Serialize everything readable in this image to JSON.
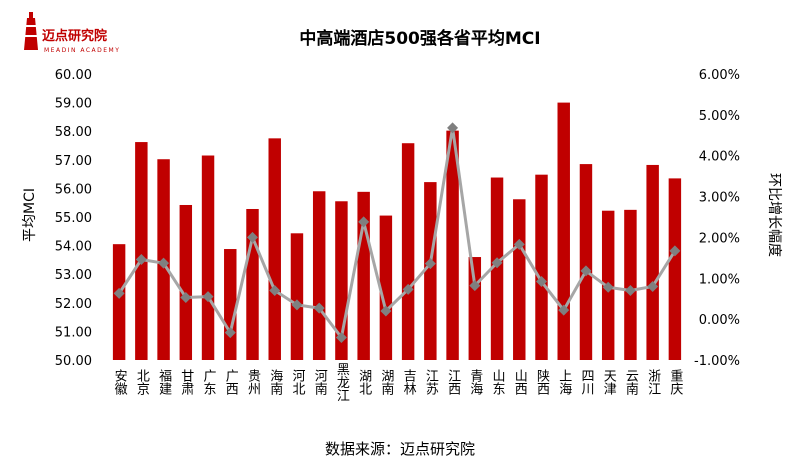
{
  "logo": {
    "text": "迈点研究院",
    "tagline": "MEADIN ACADEMY"
  },
  "footer": {
    "source": "数据来源：迈点研究院"
  },
  "colors": {
    "bar": "#C00000",
    "line": "#A6A6A6",
    "marker": "#7F7F7F",
    "title": "#000000"
  },
  "chart_data": {
    "type": "bar",
    "title": "中高端酒店500强各省平均MCI",
    "ylabel": "平均MCI",
    "y2label": "环比增长幅度",
    "ylim": [
      50,
      60
    ],
    "yticks": [
      "50.00",
      "51.00",
      "52.00",
      "53.00",
      "54.00",
      "55.00",
      "56.00",
      "57.00",
      "58.00",
      "59.00",
      "60.00"
    ],
    "y2lim": [
      -0.01,
      0.06
    ],
    "y2ticks": [
      "-1.00%",
      "0.00%",
      "1.00%",
      "2.00%",
      "3.00%",
      "4.00%",
      "5.00%",
      "6.00%"
    ],
    "grid": false,
    "legend": "none",
    "categories": [
      "安徽",
      "北京",
      "福建",
      "甘肃",
      "广东",
      "广西",
      "贵州",
      "海南",
      "河北",
      "河南",
      "黑龙江",
      "湖北",
      "湖南",
      "吉林",
      "江苏",
      "江西",
      "青海",
      "山东",
      "山西",
      "陕西",
      "上海",
      "四川",
      "天津",
      "云南",
      "浙江",
      "重庆"
    ],
    "series": [
      {
        "type": "bar",
        "axis": "left",
        "values": [
          54.05,
          57.62,
          57.02,
          55.42,
          57.15,
          53.88,
          55.28,
          57.75,
          54.43,
          55.9,
          55.55,
          55.88,
          55.05,
          57.58,
          56.22,
          58.02,
          53.6,
          56.38,
          55.62,
          56.48,
          59.0,
          56.85,
          55.22,
          55.25,
          56.82,
          56.35
        ]
      },
      {
        "type": "line",
        "axis": "right",
        "values": [
          0.0063,
          0.0146,
          0.0137,
          0.0053,
          0.0055,
          -0.0033,
          0.02,
          0.007,
          0.0035,
          0.0027,
          -0.0045,
          0.0238,
          0.002,
          0.0073,
          0.0136,
          0.0468,
          0.0082,
          0.0138,
          0.0183,
          0.0092,
          0.0022,
          0.0118,
          0.0078,
          0.007,
          0.008,
          0.0167
        ]
      }
    ]
  }
}
